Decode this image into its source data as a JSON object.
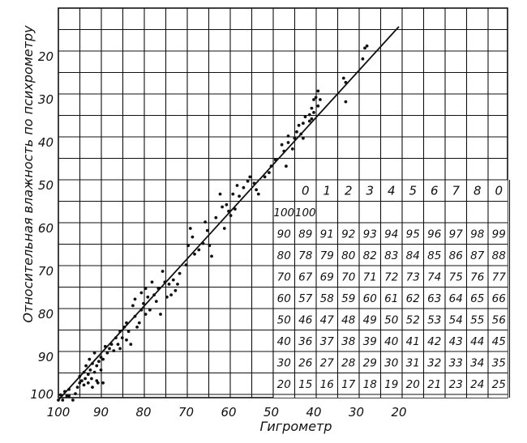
{
  "chart_data": {
    "type": "scatter",
    "title": "",
    "xlabel": "Гигрометр",
    "ylabel": "Относительная влажность по психрометру",
    "x_ticks": [
      "100",
      "90",
      "80",
      "70",
      "60",
      "50",
      "40",
      "30",
      "20"
    ],
    "y_ticks": [
      "20",
      "30",
      "40",
      "50",
      "60",
      "70",
      "80",
      "90",
      "100"
    ],
    "xlim": [
      100,
      0
    ],
    "ylim": [
      100,
      12
    ],
    "grid": true,
    "fit_line": {
      "x": [
        100,
        20
      ],
      "y": [
        100,
        13
      ]
    },
    "series": [
      {
        "points": [
          [
            100,
            100
          ],
          [
            99.5,
            98.8
          ],
          [
            99,
            100
          ],
          [
            98.5,
            98
          ],
          [
            98,
            99
          ],
          [
            97.5,
            97.5
          ],
          [
            97.5,
            99
          ],
          [
            96.6,
            100
          ],
          [
            96,
            98.5
          ],
          [
            95.5,
            97
          ],
          [
            95,
            96
          ],
          [
            95,
            94.5
          ],
          [
            94.5,
            95.5
          ],
          [
            94,
            96.5
          ],
          [
            94,
            93.5
          ],
          [
            93.7,
            95
          ],
          [
            93.5,
            92
          ],
          [
            93,
            94
          ],
          [
            93,
            96
          ],
          [
            92.7,
            90.5
          ],
          [
            92.5,
            93
          ],
          [
            92.2,
            95
          ],
          [
            92,
            97
          ],
          [
            92,
            91.5
          ],
          [
            91.5,
            93.5
          ],
          [
            91.5,
            89
          ],
          [
            91,
            92
          ],
          [
            91,
            95.5
          ],
          [
            90.7,
            96
          ],
          [
            90.5,
            91
          ],
          [
            90,
            93
          ],
          [
            90,
            90
          ],
          [
            89.5,
            96
          ],
          [
            89.5,
            90.5
          ],
          [
            89,
            87.5
          ],
          [
            88.5,
            89
          ],
          [
            88,
            88
          ],
          [
            87.5,
            87
          ],
          [
            87,
            88.5
          ],
          [
            86.5,
            85.5
          ],
          [
            86,
            87
          ],
          [
            85.5,
            84
          ],
          [
            85.5,
            88
          ],
          [
            85,
            85.5
          ],
          [
            84.5,
            83
          ],
          [
            84,
            86
          ],
          [
            84,
            82
          ],
          [
            83.5,
            84
          ],
          [
            83,
            87
          ],
          [
            82.5,
            78
          ],
          [
            82,
            80.5
          ],
          [
            82,
            76.5
          ],
          [
            81.5,
            83
          ],
          [
            81,
            82
          ],
          [
            80.5,
            79
          ],
          [
            80.5,
            75
          ],
          [
            80,
            77.5
          ],
          [
            79.5,
            80
          ],
          [
            79.5,
            74
          ],
          [
            79,
            76
          ],
          [
            78.5,
            79
          ],
          [
            78,
            72.5
          ],
          [
            77.5,
            75.5
          ],
          [
            77,
            77
          ],
          [
            76.5,
            74
          ],
          [
            76,
            80
          ],
          [
            75.5,
            70
          ],
          [
            75,
            72.5
          ],
          [
            74.5,
            76
          ],
          [
            74,
            73
          ],
          [
            73.5,
            75.5
          ],
          [
            73,
            72
          ],
          [
            72.5,
            74.5
          ],
          [
            72,
            73
          ],
          [
            71.5,
            70.5
          ],
          [
            70,
            68.5
          ],
          [
            69.5,
            64
          ],
          [
            69,
            60
          ],
          [
            68.5,
            62
          ],
          [
            68,
            66
          ],
          [
            67,
            65
          ],
          [
            66,
            63.5
          ],
          [
            65.5,
            58.5
          ],
          [
            65,
            60.5
          ],
          [
            64.5,
            64
          ],
          [
            64,
            66.5
          ],
          [
            63,
            57.5
          ],
          [
            62,
            52
          ],
          [
            61.5,
            55
          ],
          [
            61,
            60
          ],
          [
            60.5,
            54.5
          ],
          [
            60,
            56
          ],
          [
            59.5,
            57
          ],
          [
            59,
            52
          ],
          [
            58.5,
            55.5
          ],
          [
            58,
            50
          ],
          [
            57.5,
            52.5
          ],
          [
            56.5,
            50.5
          ],
          [
            55.5,
            49
          ],
          [
            55,
            48
          ],
          [
            54,
            49.5
          ],
          [
            53.5,
            51
          ],
          [
            53,
            52
          ],
          [
            51.5,
            48
          ],
          [
            50.5,
            47
          ],
          [
            50,
            45.5
          ],
          [
            49,
            44
          ],
          [
            47.5,
            40.5
          ],
          [
            47,
            42
          ],
          [
            46.5,
            45.5
          ],
          [
            46,
            40
          ],
          [
            46,
            38.5
          ],
          [
            45,
            41.5
          ],
          [
            44.5,
            39
          ],
          [
            44,
            37.5
          ],
          [
            43.5,
            36
          ],
          [
            43,
            38
          ],
          [
            42.5,
            39
          ],
          [
            42.5,
            35.5
          ],
          [
            42,
            34
          ],
          [
            41,
            33.5
          ],
          [
            41,
            35
          ],
          [
            40.5,
            32
          ],
          [
            40.5,
            34.5
          ],
          [
            40,
            30
          ],
          [
            40,
            33
          ],
          [
            39.5,
            29.5
          ],
          [
            39,
            31.5
          ],
          [
            39,
            28
          ],
          [
            38.5,
            30
          ],
          [
            33,
            25
          ],
          [
            32.5,
            30.5
          ],
          [
            32.5,
            26
          ],
          [
            28.5,
            20.5
          ],
          [
            28,
            18
          ],
          [
            27.5,
            17.5
          ]
        ]
      }
    ],
    "table": {
      "header_cols": [
        "0",
        "1",
        "2",
        "3",
        "4",
        "5",
        "6",
        "7",
        "8",
        "0"
      ],
      "rows": [
        {
          "key": "100",
          "values": [
            "100"
          ]
        },
        {
          "key": "90",
          "values": [
            "89",
            "91",
            "92",
            "93",
            "94",
            "95",
            "96",
            "97",
            "98",
            "99"
          ]
        },
        {
          "key": "80",
          "values": [
            "78",
            "79",
            "80",
            "82",
            "83",
            "84",
            "85",
            "86",
            "87",
            "88"
          ]
        },
        {
          "key": "70",
          "values": [
            "67",
            "69",
            "70",
            "71",
            "72",
            "73",
            "74",
            "75",
            "76",
            "77"
          ]
        },
        {
          "key": "60",
          "values": [
            "57",
            "58",
            "59",
            "60",
            "61",
            "62",
            "63",
            "64",
            "65",
            "66"
          ]
        },
        {
          "key": "50",
          "values": [
            "46",
            "47",
            "48",
            "49",
            "50",
            "52",
            "53",
            "54",
            "55",
            "56"
          ]
        },
        {
          "key": "40",
          "values": [
            "36",
            "37",
            "38",
            "39",
            "40",
            "41",
            "42",
            "43",
            "44",
            "45"
          ]
        },
        {
          "key": "30",
          "values": [
            "26",
            "27",
            "28",
            "29",
            "30",
            "31",
            "32",
            "33",
            "34",
            "35"
          ]
        },
        {
          "key": "20",
          "values": [
            "15",
            "16",
            "17",
            "18",
            "19",
            "20",
            "21",
            "23",
            "24",
            "25"
          ]
        }
      ]
    }
  },
  "colors": {
    "ink": "#111111",
    "background": "#ffffff"
  }
}
